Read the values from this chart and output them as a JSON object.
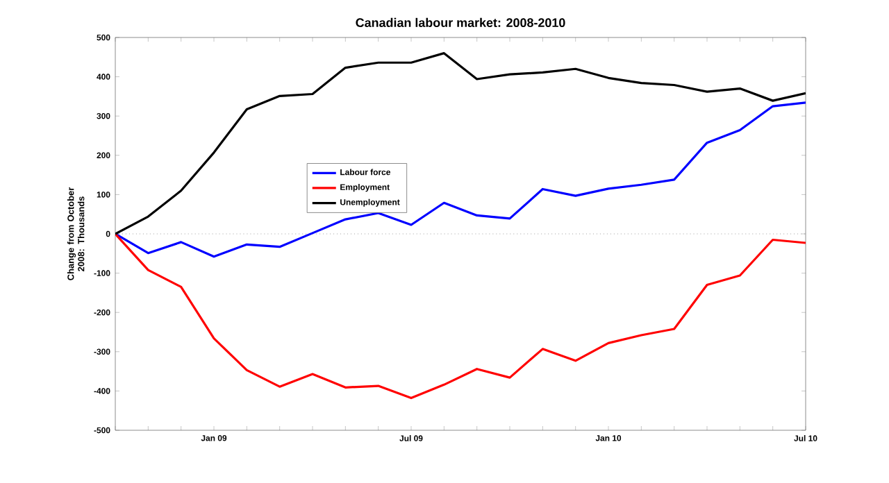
{
  "chart_data": {
    "type": "line",
    "title": "Canadian labour market: 2008-2010",
    "ylabel": "Change from October 2008: Thousands",
    "categories": [
      null,
      null,
      null,
      "Jan 09",
      null,
      null,
      null,
      null,
      null,
      "Jul 09",
      null,
      null,
      null,
      null,
      null,
      "Jan 10",
      null,
      null,
      null,
      null,
      null,
      "Jul 10"
    ],
    "series": [
      {
        "name": "Labour force",
        "color": "#0000ff",
        "values": [
          0,
          -49,
          -21,
          -58,
          -27,
          -33,
          2,
          37,
          53,
          23,
          79,
          47,
          39,
          114,
          97,
          115,
          125,
          138,
          232,
          264,
          325,
          334
        ]
      },
      {
        "name": "Employment",
        "color": "#ff0000",
        "values": [
          0,
          -92,
          -135,
          -266,
          -347,
          -389,
          -357,
          -391,
          -387,
          -418,
          -384,
          -344,
          -366,
          -293,
          -323,
          -278,
          -258,
          -242,
          -130,
          -106,
          -15,
          -23
        ]
      },
      {
        "name": "Unemployment",
        "color": "#000000",
        "values": [
          0,
          44,
          110,
          207,
          317,
          351,
          356,
          423,
          436,
          436,
          460,
          394,
          406,
          411,
          420,
          397,
          384,
          379,
          362,
          370,
          339,
          358
        ]
      }
    ],
    "ylim": [
      -500,
      500
    ],
    "yticks": [
      -500,
      -400,
      -300,
      -200,
      -100,
      0,
      100,
      200,
      300,
      400,
      500
    ],
    "ref_lines": [
      {
        "axis": "y",
        "value": 0,
        "color": "#a0a0a0",
        "line_style": "dotted"
      }
    ],
    "legend": "top",
    "grid": false,
    "marker": "none",
    "line_style": "solid"
  }
}
